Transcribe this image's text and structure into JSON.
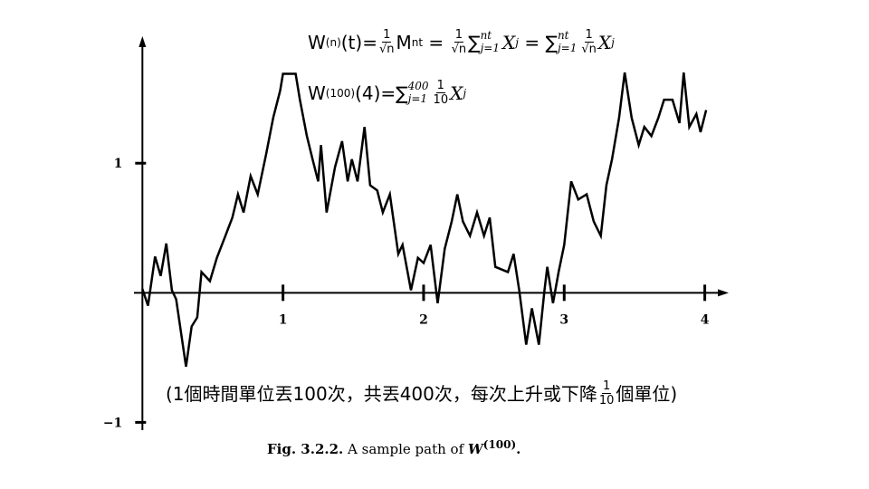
{
  "chart_data": {
    "type": "line",
    "color": "#000000",
    "xlim": [
      -0.06,
      4.17
    ],
    "ylim": [
      -1.06,
      1.98
    ],
    "xticks": [
      1,
      2,
      3,
      4
    ],
    "yticks": [
      1,
      {
        "value": -1,
        "label": "−1"
      }
    ],
    "x": [
      0,
      0.04,
      0.09,
      0.13,
      0.17,
      0.21,
      0.24,
      0.31,
      0.35,
      0.39,
      0.42,
      0.48,
      0.53,
      0.59,
      0.64,
      0.68,
      0.72,
      0.77,
      0.82,
      0.88,
      0.93,
      0.98,
      1.0,
      1.09,
      1.12,
      1.17,
      1.21,
      1.25,
      1.27,
      1.31,
      1.37,
      1.42,
      1.46,
      1.49,
      1.53,
      1.58,
      1.62,
      1.67,
      1.71,
      1.76,
      1.82,
      1.85,
      1.91,
      1.96,
      2.0,
      2.05,
      2.1,
      2.15,
      2.2,
      2.24,
      2.28,
      2.33,
      2.38,
      2.43,
      2.47,
      2.51,
      2.6,
      2.64,
      2.68,
      2.73,
      2.77,
      2.82,
      2.86,
      2.88,
      2.92,
      2.96,
      3.0,
      3.05,
      3.1,
      3.16,
      3.21,
      3.26,
      3.3,
      3.34,
      3.39,
      3.43,
      3.48,
      3.53,
      3.57,
      3.62,
      3.67,
      3.71,
      3.77,
      3.82,
      3.85,
      3.89,
      3.94,
      3.97,
      4.01
    ],
    "values": [
      0.03,
      -0.1,
      0.28,
      0.13,
      0.38,
      0.02,
      -0.05,
      -0.57,
      -0.26,
      -0.19,
      0.16,
      0.09,
      0.27,
      0.44,
      0.58,
      0.76,
      0.62,
      0.9,
      0.76,
      1.07,
      1.35,
      1.56,
      1.69,
      1.69,
      1.49,
      1.21,
      1.03,
      0.86,
      1.14,
      0.62,
      0.97,
      1.17,
      0.86,
      1.03,
      0.86,
      1.28,
      0.83,
      0.79,
      0.62,
      0.76,
      0.3,
      0.37,
      0.02,
      0.27,
      0.23,
      0.37,
      -0.08,
      0.34,
      0.55,
      0.76,
      0.55,
      0.44,
      0.62,
      0.44,
      0.58,
      0.2,
      0.16,
      0.3,
      0.02,
      -0.4,
      -0.12,
      -0.4,
      0.02,
      0.2,
      -0.08,
      0.16,
      0.37,
      0.86,
      0.72,
      0.76,
      0.55,
      0.44,
      0.83,
      1.03,
      1.35,
      1.7,
      1.35,
      1.14,
      1.28,
      1.21,
      1.35,
      1.49,
      1.49,
      1.31,
      1.7,
      1.28,
      1.38,
      1.24,
      1.41
    ]
  },
  "formula_1": [
    "W",
    "(n)",
    "(t)=",
    "1",
    "√n",
    "M",
    "nt",
    " = ",
    "1",
    "√n",
    "∑",
    "nt",
    "j=1",
    "X",
    "j",
    " = ",
    "∑",
    "nt",
    "j=1",
    "1",
    "√n",
    "X",
    "j"
  ],
  "formula_2": [
    "W",
    "(100)",
    "(4)=",
    "∑",
    "400",
    "j=1",
    "1",
    "10",
    "X",
    "j"
  ],
  "note": [
    "(1個時間單位丟100次，共丟400次，每次上升或下降",
    "1",
    "10",
    "個單位)"
  ],
  "caption": [
    "Fig. 3.2.2.",
    " A sample path of ",
    "W",
    "(100)",
    "."
  ]
}
